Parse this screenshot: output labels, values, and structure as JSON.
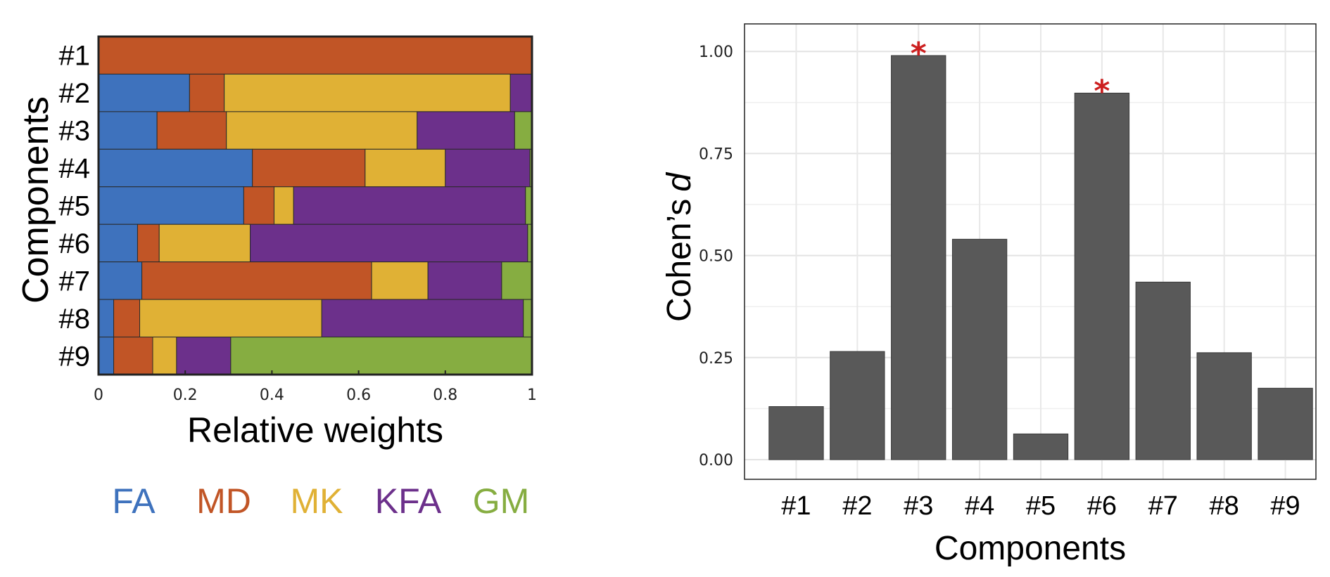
{
  "chart_data": [
    {
      "type": "bar",
      "orientation": "horizontal-stacked",
      "title": "",
      "xlabel": "Relative weights",
      "ylabel": "Components",
      "xlim": [
        0,
        1
      ],
      "x_ticks": [
        "0",
        "0.2",
        "0.4",
        "0.6",
        "0.8",
        "1"
      ],
      "x_tick_values": [
        0,
        0.2,
        0.4,
        0.6,
        0.8,
        1
      ],
      "categories": [
        "#1",
        "#2",
        "#3",
        "#4",
        "#5",
        "#6",
        "#7",
        "#8",
        "#9"
      ],
      "series": [
        {
          "name": "FA",
          "color": "#3e72bd",
          "values": [
            0.0,
            0.21,
            0.135,
            0.355,
            0.335,
            0.09,
            0.1,
            0.035,
            0.035
          ]
        },
        {
          "name": "MD",
          "color": "#c15526",
          "values": [
            1.0,
            0.08,
            0.16,
            0.26,
            0.07,
            0.05,
            0.53,
            0.06,
            0.09
          ]
        },
        {
          "name": "MK",
          "color": "#e0b135",
          "values": [
            0.0,
            0.66,
            0.44,
            0.185,
            0.045,
            0.21,
            0.13,
            0.42,
            0.055
          ]
        },
        {
          "name": "KFA",
          "color": "#6c308b",
          "values": [
            0.0,
            0.05,
            0.225,
            0.195,
            0.535,
            0.64,
            0.17,
            0.465,
            0.125
          ]
        },
        {
          "name": "GM",
          "color": "#86ad41",
          "values": [
            0.0,
            0.0,
            0.04,
            0.005,
            0.015,
            0.01,
            0.07,
            0.02,
            0.695
          ]
        }
      ],
      "legend": {
        "placement": "bottom",
        "entries": [
          "FA",
          "MD",
          "MK",
          "KFA",
          "GM"
        ]
      }
    },
    {
      "type": "bar",
      "title": "",
      "xlabel": "Components",
      "ylabel": "Cohen’s d",
      "ylabel_main": "Cohen’s",
      "ylabel_italic": "d",
      "ylim": [
        0,
        1.04
      ],
      "y_ticks": [
        "0.00",
        "0.25",
        "0.50",
        "0.75",
        "1.00"
      ],
      "y_tick_values": [
        0,
        0.25,
        0.5,
        0.75,
        1.0
      ],
      "categories": [
        "#1",
        "#2",
        "#3",
        "#4",
        "#5",
        "#6",
        "#7",
        "#8",
        "#9"
      ],
      "values": [
        0.13,
        0.265,
        0.99,
        0.54,
        0.063,
        0.898,
        0.435,
        0.262,
        0.175
      ],
      "significant": [
        false,
        false,
        true,
        false,
        false,
        true,
        false,
        false,
        false
      ],
      "significance_marker": "*",
      "bar_color": "#595959",
      "marker_color": "#cc1f1f",
      "grid": true
    }
  ]
}
